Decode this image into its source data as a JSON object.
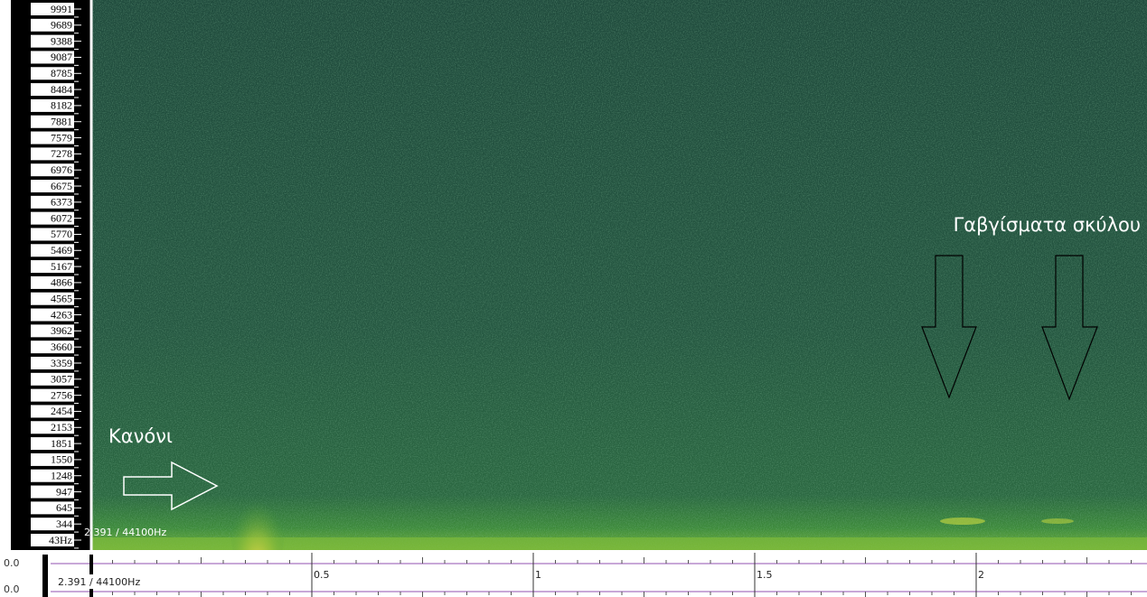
{
  "frequency_labels": [
    "9991",
    "9689",
    "9388",
    "9087",
    "8785",
    "8484",
    "8182",
    "7881",
    "7579",
    "7278",
    "6976",
    "6675",
    "6373",
    "6072",
    "5770",
    "5469",
    "5167",
    "4866",
    "4565",
    "4263",
    "3962",
    "3660",
    "3359",
    "3057",
    "2756",
    "2454",
    "2153",
    "1851",
    "1550",
    "1248",
    "947",
    "645",
    "344",
    "43Hz"
  ],
  "cursor_readout": "2.391 / 44100Hz",
  "ruler": {
    "level_labels": [
      "0.0",
      "0.0"
    ],
    "readout": "2.391 / 44100Hz",
    "time_labels": [
      "0.5",
      "1",
      "1.5",
      "2"
    ]
  },
  "annotations": {
    "cannon": "Κανόνι",
    "dog_barks": "Γαβγίσματα σκύλου"
  }
}
